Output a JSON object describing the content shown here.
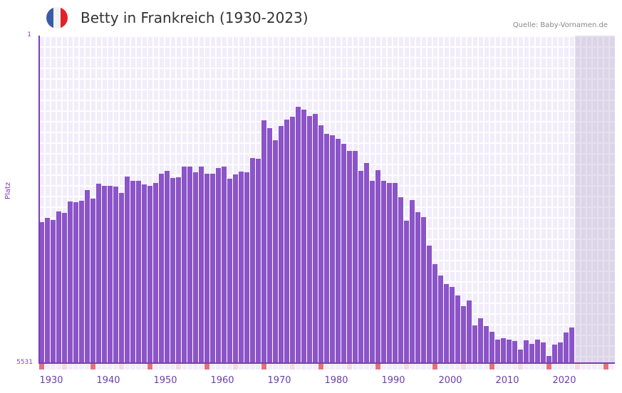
{
  "header": {
    "title": "Betty in Frankreich (1930-2023)",
    "source": "Quelle: Baby-Vornamen.de",
    "flag": {
      "name": "france-flag-icon",
      "colors": [
        "#3a5ba8",
        "#f2f2f2",
        "#e32128"
      ]
    }
  },
  "colors": {
    "bar": "#8b54c8",
    "axis": "#7b3fb5",
    "plot_bg": "#f1edfa",
    "decade_tick": "#e5707a",
    "half_decade_tick": "#f5d9e0"
  },
  "chart_data": {
    "type": "bar",
    "title": "Betty in Frankreich (1930-2023)",
    "xlabel": "",
    "ylabel": "Platz",
    "y_inverted": true,
    "ylim": [
      1,
      5531
    ],
    "xlim": [
      1930,
      2030
    ],
    "grid": true,
    "x_ticks": [
      1930,
      1940,
      1950,
      1960,
      1970,
      1980,
      1990,
      2000,
      2010,
      2020
    ],
    "y_ticks": [
      1,
      5531
    ],
    "categories": [
      1930,
      1931,
      1932,
      1933,
      1934,
      1935,
      1936,
      1937,
      1938,
      1939,
      1940,
      1941,
      1942,
      1943,
      1944,
      1945,
      1946,
      1947,
      1948,
      1949,
      1950,
      1951,
      1952,
      1953,
      1954,
      1955,
      1956,
      1957,
      1958,
      1959,
      1960,
      1961,
      1962,
      1963,
      1964,
      1965,
      1966,
      1967,
      1968,
      1969,
      1970,
      1971,
      1972,
      1973,
      1974,
      1975,
      1976,
      1977,
      1978,
      1979,
      1980,
      1981,
      1982,
      1983,
      1984,
      1985,
      1986,
      1987,
      1988,
      1989,
      1990,
      1991,
      1992,
      1993,
      1994,
      1995,
      1996,
      1997,
      1998,
      1999,
      2000,
      2001,
      2002,
      2003,
      2004,
      2005,
      2006,
      2007,
      2008,
      2009,
      2010,
      2011,
      2012,
      2013,
      2014,
      2015,
      2016,
      2017,
      2018,
      2019,
      2020,
      2021,
      2022,
      2023
    ],
    "series": [
      {
        "name": "Platz",
        "values": [
          3150,
          3078,
          3114,
          2970,
          2994,
          2802,
          2814,
          2790,
          2609,
          2753,
          2500,
          2536,
          2536,
          2548,
          2656,
          2380,
          2452,
          2452,
          2512,
          2536,
          2488,
          2332,
          2284,
          2404,
          2392,
          2212,
          2212,
          2308,
          2212,
          2332,
          2332,
          2236,
          2212,
          2416,
          2344,
          2296,
          2308,
          2067,
          2079,
          1430,
          1562,
          1767,
          1526,
          1418,
          1370,
          1202,
          1250,
          1358,
          1322,
          1514,
          1658,
          1682,
          1743,
          1827,
          1947,
          1947,
          2284,
          2152,
          2452,
          2272,
          2452,
          2488,
          2488,
          2729,
          3126,
          2777,
          2982,
          3066,
          3547,
          3860,
          4052,
          4197,
          4245,
          4389,
          4569,
          4473,
          4894,
          4774,
          4906,
          5002,
          5134,
          5110,
          5134,
          5158,
          5303,
          5146,
          5206,
          5134,
          5182,
          5410,
          5218,
          5182,
          5014,
          4930
        ]
      }
    ]
  },
  "axis": {
    "ylabel": "Platz",
    "ytop": "1",
    "ybottom": "5531"
  }
}
